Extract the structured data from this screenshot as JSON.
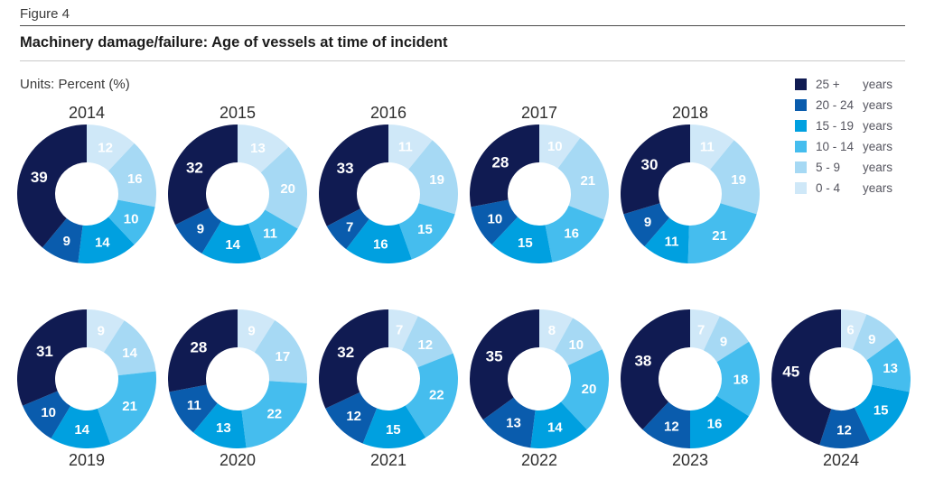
{
  "figure_label": "Figure 4",
  "title": "Machinery damage/failure: Age of vessels at time of incident",
  "units_label": "Units: Percent (%)",
  "legend": {
    "items": [
      {
        "range": "25 +",
        "suffix": "years",
        "color": "#101b52"
      },
      {
        "range": "20 - 24",
        "suffix": "years",
        "color": "#0a5cad"
      },
      {
        "range": "15 - 19",
        "suffix": "years",
        "color": "#00a0e0"
      },
      {
        "range": "10 - 14",
        "suffix": "years",
        "color": "#45bdee"
      },
      {
        "range": "5 - 9",
        "suffix": "years",
        "color": "#a6d9f4"
      },
      {
        "range": "0 - 4",
        "suffix": "years",
        "color": "#cfe8f8"
      }
    ]
  },
  "chart_data": {
    "type": "pie",
    "subtype": "donut_small_multiples",
    "title": "Machinery damage/failure: Age of vessels at time of incident",
    "units": "Percent (%)",
    "legend_position": "top-right",
    "clockwise_from_top": true,
    "categories": [
      "0 - 4 years",
      "5 - 9 years",
      "10 - 14 years",
      "15 - 19 years",
      "20 - 24 years",
      "25 + years"
    ],
    "category_slugs": [
      "0-4",
      "5-9",
      "10-14",
      "15-19",
      "20-24",
      "25plus"
    ],
    "segment_colors": [
      "#cfe8f8",
      "#a6d9f4",
      "#45bdee",
      "#00a0e0",
      "#0a5cad",
      "#101b52"
    ],
    "rows": [
      [
        "2014",
        "2015",
        "2016",
        "2017",
        "2018"
      ],
      [
        "2019",
        "2020",
        "2021",
        "2022",
        "2023",
        "2024"
      ]
    ],
    "series": [
      {
        "year": "2014",
        "values": [
          12,
          16,
          10,
          14,
          9,
          39
        ]
      },
      {
        "year": "2015",
        "values": [
          13,
          20,
          11,
          14,
          9,
          32
        ]
      },
      {
        "year": "2016",
        "values": [
          11,
          19,
          15,
          16,
          7,
          33
        ]
      },
      {
        "year": "2017",
        "values": [
          10,
          21,
          16,
          15,
          10,
          28
        ]
      },
      {
        "year": "2018",
        "values": [
          11,
          19,
          21,
          11,
          9,
          30
        ]
      },
      {
        "year": "2019",
        "values": [
          9,
          14,
          21,
          14,
          10,
          31
        ]
      },
      {
        "year": "2020",
        "values": [
          9,
          17,
          22,
          13,
          11,
          28
        ]
      },
      {
        "year": "2021",
        "values": [
          7,
          12,
          22,
          15,
          12,
          32
        ]
      },
      {
        "year": "2022",
        "values": [
          8,
          10,
          20,
          14,
          13,
          35
        ]
      },
      {
        "year": "2023",
        "values": [
          7,
          9,
          18,
          16,
          12,
          38
        ]
      },
      {
        "year": "2024",
        "values": [
          6,
          9,
          13,
          15,
          12,
          45
        ]
      }
    ]
  }
}
